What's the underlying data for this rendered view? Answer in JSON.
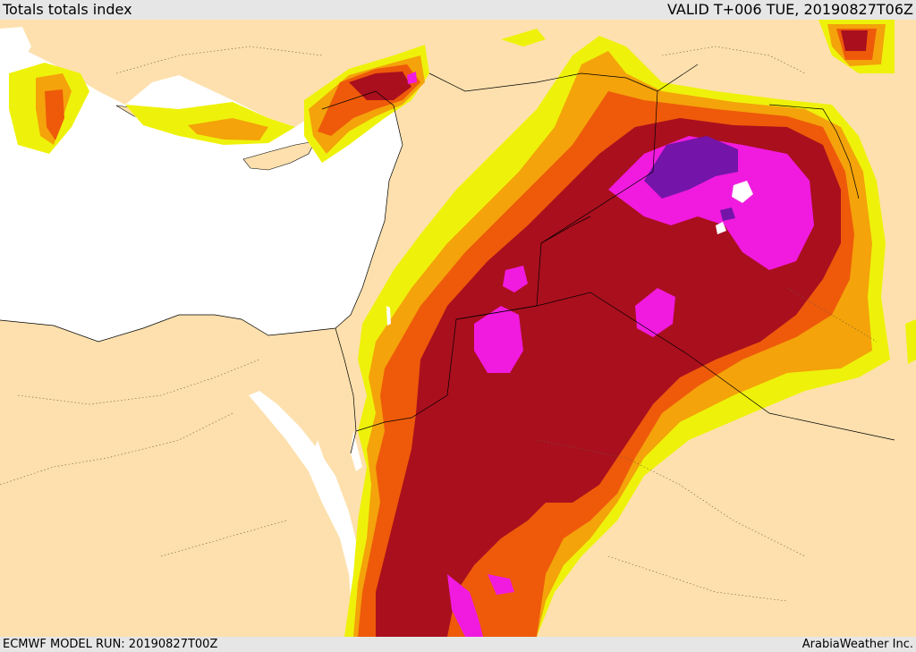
{
  "header": {
    "title": "Totals totals index",
    "valid": "VALID T+006 TUE, 20190827T06Z"
  },
  "footer": {
    "model_run": "ECMWF MODEL RUN: 20190827T00Z",
    "credit": "ArabiaWeather Inc."
  },
  "colors": {
    "land": "#fde0ad",
    "sea": "#ffffff",
    "level_1": "#eef20a",
    "level_2": "#f4a30a",
    "level_3": "#ee5a0a",
    "level_4": "#aa0f1e",
    "level_5": "#f01bdf",
    "level_6": "#7414a8"
  }
}
